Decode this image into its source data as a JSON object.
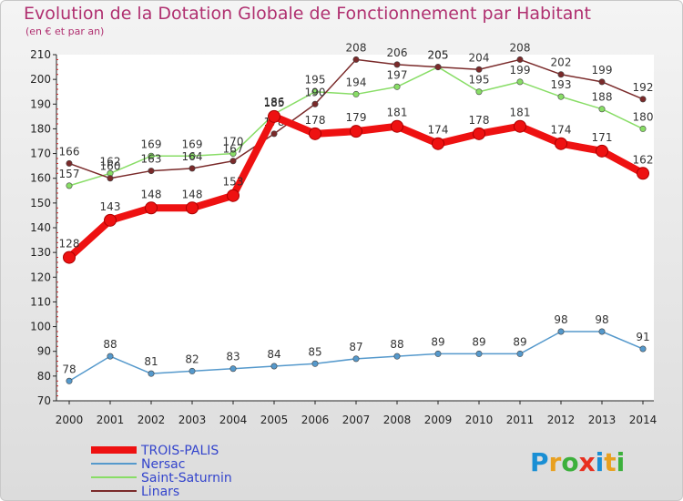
{
  "title": "Evolution de la Dotation Globale de Fonctionnement par Habitant",
  "subtitle": "(en € et par an)",
  "logo": {
    "letters": [
      "P",
      "r",
      "o",
      "x",
      "i",
      "t",
      "i"
    ],
    "colors": [
      "#1a8fd4",
      "#e8a020",
      "#3cb03c",
      "#e83020",
      "#1a8fd4",
      "#e8a020",
      "#3cb03c"
    ]
  },
  "chart_data": {
    "type": "line",
    "title": "Evolution de la Dotation Globale de Fonctionnement par Habitant",
    "ylabel": "(en € et par an)",
    "xlabel": "",
    "x": [
      "2000",
      "2001",
      "2002",
      "2003",
      "2004",
      "2005",
      "2006",
      "2007",
      "2008",
      "2009",
      "2010",
      "2011",
      "2012",
      "2013",
      "2014"
    ],
    "ylim": [
      70,
      210
    ],
    "yticks": [
      70,
      80,
      90,
      100,
      110,
      120,
      130,
      140,
      150,
      160,
      170,
      180,
      190,
      200,
      210
    ],
    "grid": false,
    "legend": "bottom-left",
    "series": [
      {
        "name": "TROIS-PALIS",
        "color": "#ee1111",
        "emphasis": true,
        "values": [
          128,
          143,
          148,
          148,
          153,
          185,
          178,
          179,
          181,
          174,
          178,
          181,
          174,
          171,
          162
        ]
      },
      {
        "name": "Nersac",
        "color": "#5599cc",
        "emphasis": false,
        "values": [
          78,
          88,
          81,
          82,
          83,
          84,
          85,
          87,
          88,
          89,
          89,
          89,
          98,
          98,
          91
        ]
      },
      {
        "name": "Saint-Saturnin",
        "color": "#88dd66",
        "emphasis": false,
        "values": [
          157,
          162,
          169,
          169,
          170,
          186,
          195,
          194,
          197,
          205,
          195,
          199,
          193,
          188,
          180
        ]
      },
      {
        "name": "Linars",
        "color": "#7a2a2a",
        "emphasis": false,
        "values": [
          166,
          160,
          163,
          164,
          167,
          178,
          190,
          208,
          206,
          205,
          204,
          208,
          202,
          199,
          192
        ]
      }
    ]
  }
}
